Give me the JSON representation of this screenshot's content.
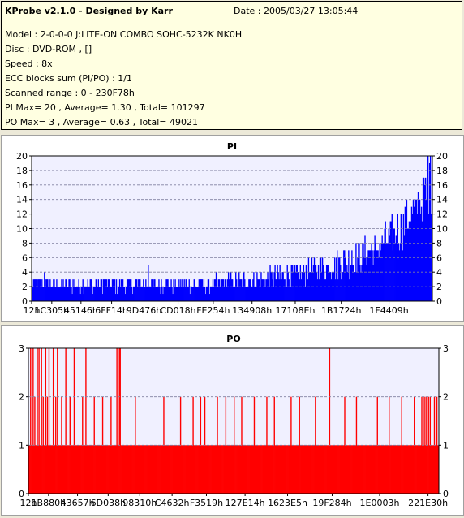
{
  "info": {
    "title": "KProbe v2.1.0 - Designed by Karr",
    "date": "Date : 2005/03/27 13:05:44",
    "lines": [
      "Model : 2-0-0-0 J:LITE-ON COMBO SOHC-5232K NK0H",
      "Disc : DVD-ROM ,  []",
      "Speed : 8x",
      "ECC blocks sum (PI/PO) : 1/1",
      "Scanned range : 0 - 230F78h",
      "PI Max= 20 , Average= 1.30 , Total= 101297",
      "PO Max= 3 , Average= 0.63 , Total= 49021"
    ]
  },
  "chart_data": [
    {
      "type": "bar",
      "title": "PI",
      "series_color": "#0000FF",
      "ylim": [
        0,
        20
      ],
      "yticks": [
        0,
        2,
        4,
        6,
        8,
        10,
        12,
        14,
        16,
        18,
        20
      ],
      "xlim": [
        0,
        2297720
      ],
      "x_tick_labels": [
        "12h",
        "1C305h",
        "45146h",
        "6FF14h",
        "9D476h",
        "CD018h",
        "FE254h",
        "134908h",
        "17108Eh",
        "1B1724h",
        "1F4409h"
      ],
      "x_tick_values": [
        18,
        115461,
        282950,
        458516,
        644214,
        839704,
        1041236,
        1263880,
        1511566,
        1775396,
        2049033
      ],
      "grid": true,
      "bins": 490,
      "baseline_profile": [
        [
          0,
          2
        ],
        [
          0.42,
          2
        ],
        [
          0.56,
          2.6
        ],
        [
          0.66,
          3.2
        ],
        [
          0.74,
          4
        ],
        [
          0.8,
          5
        ],
        [
          0.86,
          6.5
        ],
        [
          0.91,
          8.5
        ],
        [
          0.96,
          11.5
        ],
        [
          1,
          15
        ]
      ],
      "spread_profile": [
        [
          0,
          1.3
        ],
        [
          0.5,
          1.3
        ],
        [
          0.7,
          2.2
        ],
        [
          0.85,
          3
        ],
        [
          1,
          4.5
        ]
      ],
      "peaks": [
        [
          0.03,
          4
        ],
        [
          0.29,
          5
        ],
        [
          0.49,
          4
        ],
        [
          0.62,
          5
        ],
        [
          0.72,
          6
        ],
        [
          0.76,
          6
        ],
        [
          0.78,
          7
        ],
        [
          0.8,
          7
        ],
        [
          0.86,
          7
        ],
        [
          0.89,
          8
        ],
        [
          0.94,
          10
        ],
        [
          0.96,
          14
        ],
        [
          0.98,
          17
        ],
        [
          0.99,
          20
        ],
        [
          0.995,
          20
        ]
      ]
    },
    {
      "type": "bar",
      "title": "PO",
      "series_color": "#FF0000",
      "ylim": [
        0,
        3
      ],
      "yticks": [
        0,
        1,
        2,
        3
      ],
      "xlim": [
        0,
        2297720
      ],
      "x_tick_labels": [
        "12h",
        "1B880h",
        "43657h",
        "6D038h",
        "98310h",
        "C4632h",
        "F3519h",
        "127E14h",
        "1623E5h",
        "19F284h",
        "1E0003h",
        "221E30h"
      ],
      "x_tick_values": [
        18,
        112768,
        275031,
        446520,
        623376,
        804402,
        996633,
        1212948,
        1450981,
        1700484,
        1966083,
        2236976
      ],
      "grid": true,
      "bins": 490,
      "baseline_value": 1,
      "spikes": [
        [
          0.005,
          3
        ],
        [
          0.01,
          3
        ],
        [
          0.015,
          2
        ],
        [
          0.02,
          3
        ],
        [
          0.025,
          3
        ],
        [
          0.03,
          3
        ],
        [
          0.035,
          2
        ],
        [
          0.04,
          3
        ],
        [
          0.045,
          2
        ],
        [
          0.05,
          3
        ],
        [
          0.06,
          3
        ],
        [
          0.065,
          2
        ],
        [
          0.07,
          3
        ],
        [
          0.08,
          2
        ],
        [
          0.09,
          3
        ],
        [
          0.1,
          2
        ],
        [
          0.11,
          3
        ],
        [
          0.13,
          2
        ],
        [
          0.14,
          3
        ],
        [
          0.16,
          2
        ],
        [
          0.18,
          2
        ],
        [
          0.2,
          2
        ],
        [
          0.215,
          3
        ],
        [
          0.22,
          3
        ],
        [
          0.223,
          3
        ],
        [
          0.26,
          2
        ],
        [
          0.33,
          2
        ],
        [
          0.37,
          2
        ],
        [
          0.4,
          2
        ],
        [
          0.42,
          2
        ],
        [
          0.43,
          2
        ],
        [
          0.46,
          2
        ],
        [
          0.48,
          2
        ],
        [
          0.5,
          2
        ],
        [
          0.52,
          2
        ],
        [
          0.55,
          2
        ],
        [
          0.58,
          2
        ],
        [
          0.6,
          2
        ],
        [
          0.64,
          2
        ],
        [
          0.66,
          2
        ],
        [
          0.7,
          2
        ],
        [
          0.735,
          3
        ],
        [
          0.77,
          2
        ],
        [
          0.8,
          2
        ],
        [
          0.85,
          2
        ],
        [
          0.88,
          2
        ],
        [
          0.91,
          2
        ],
        [
          0.94,
          2
        ],
        [
          0.96,
          2
        ],
        [
          0.965,
          2
        ],
        [
          0.97,
          2
        ],
        [
          0.975,
          2
        ],
        [
          0.98,
          2
        ],
        [
          0.99,
          2
        ],
        [
          0.995,
          2
        ]
      ]
    }
  ]
}
